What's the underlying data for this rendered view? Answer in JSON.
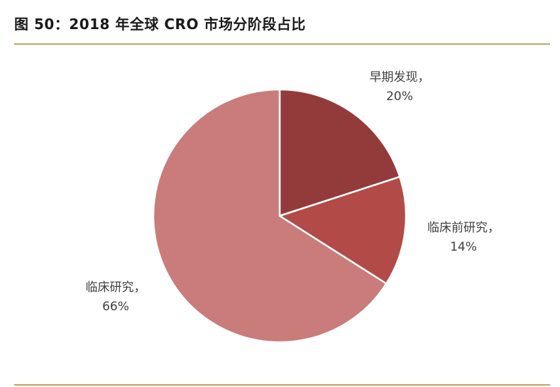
{
  "figure": {
    "title": "图 50：2018 年全球 CRO 市场分阶段占比"
  },
  "colors": {
    "rule": "#c9a063",
    "slice_separator": "#ffffff"
  },
  "chart_data": {
    "type": "pie",
    "title": "",
    "start_angle_deg": 0,
    "direction": "clockwise",
    "slices": [
      {
        "name": "早期发现",
        "value": 20,
        "display": "20%",
        "color": "#933b3b"
      },
      {
        "name": "临床前研究",
        "value": 14,
        "display": "14%",
        "color": "#b24a47"
      },
      {
        "name": "临床研究",
        "value": 66,
        "display": "66%",
        "color": "#c97c7a"
      }
    ],
    "labels": [
      {
        "name_line": "早期发现，",
        "value_line": "20%"
      },
      {
        "name_line": "临床前研究，",
        "value_line": "14%"
      },
      {
        "name_line": "临床研究，",
        "value_line": "66%"
      }
    ]
  }
}
